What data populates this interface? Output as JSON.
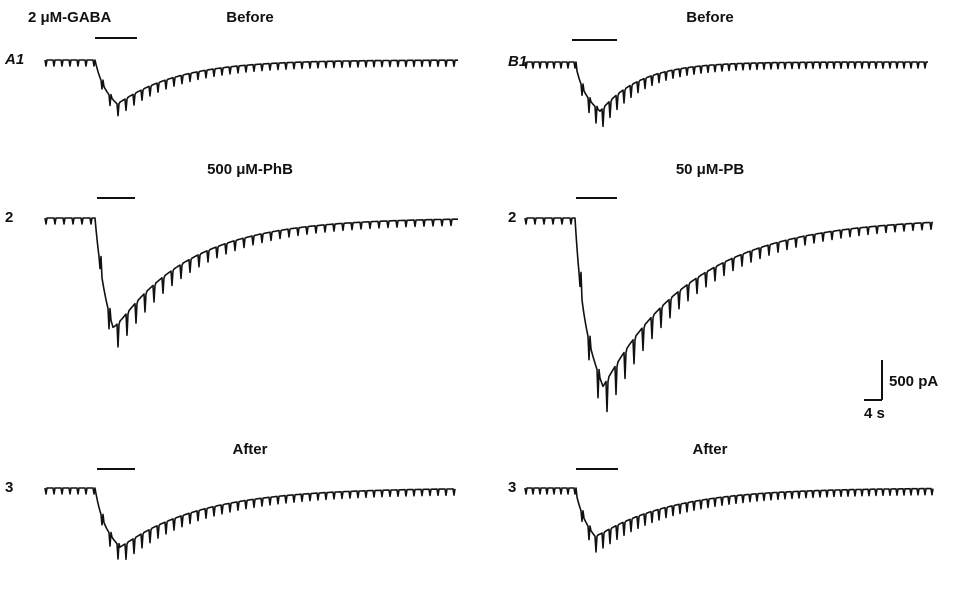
{
  "header": {
    "drug": "2 μM-GABA"
  },
  "panels": [
    {
      "rows": [
        {
          "label": "A1",
          "title": "Before"
        },
        {
          "label": "2",
          "title": "500 μM-PhB"
        },
        {
          "label": "3",
          "title": "After"
        }
      ]
    },
    {
      "rows": [
        {
          "label": "B1",
          "title": "Before"
        },
        {
          "label": "2",
          "title": "50 μM-PB"
        },
        {
          "label": "3",
          "title": "After"
        }
      ]
    }
  ],
  "scale_bar": {
    "current": "500 pA",
    "time": "4 s"
  }
}
